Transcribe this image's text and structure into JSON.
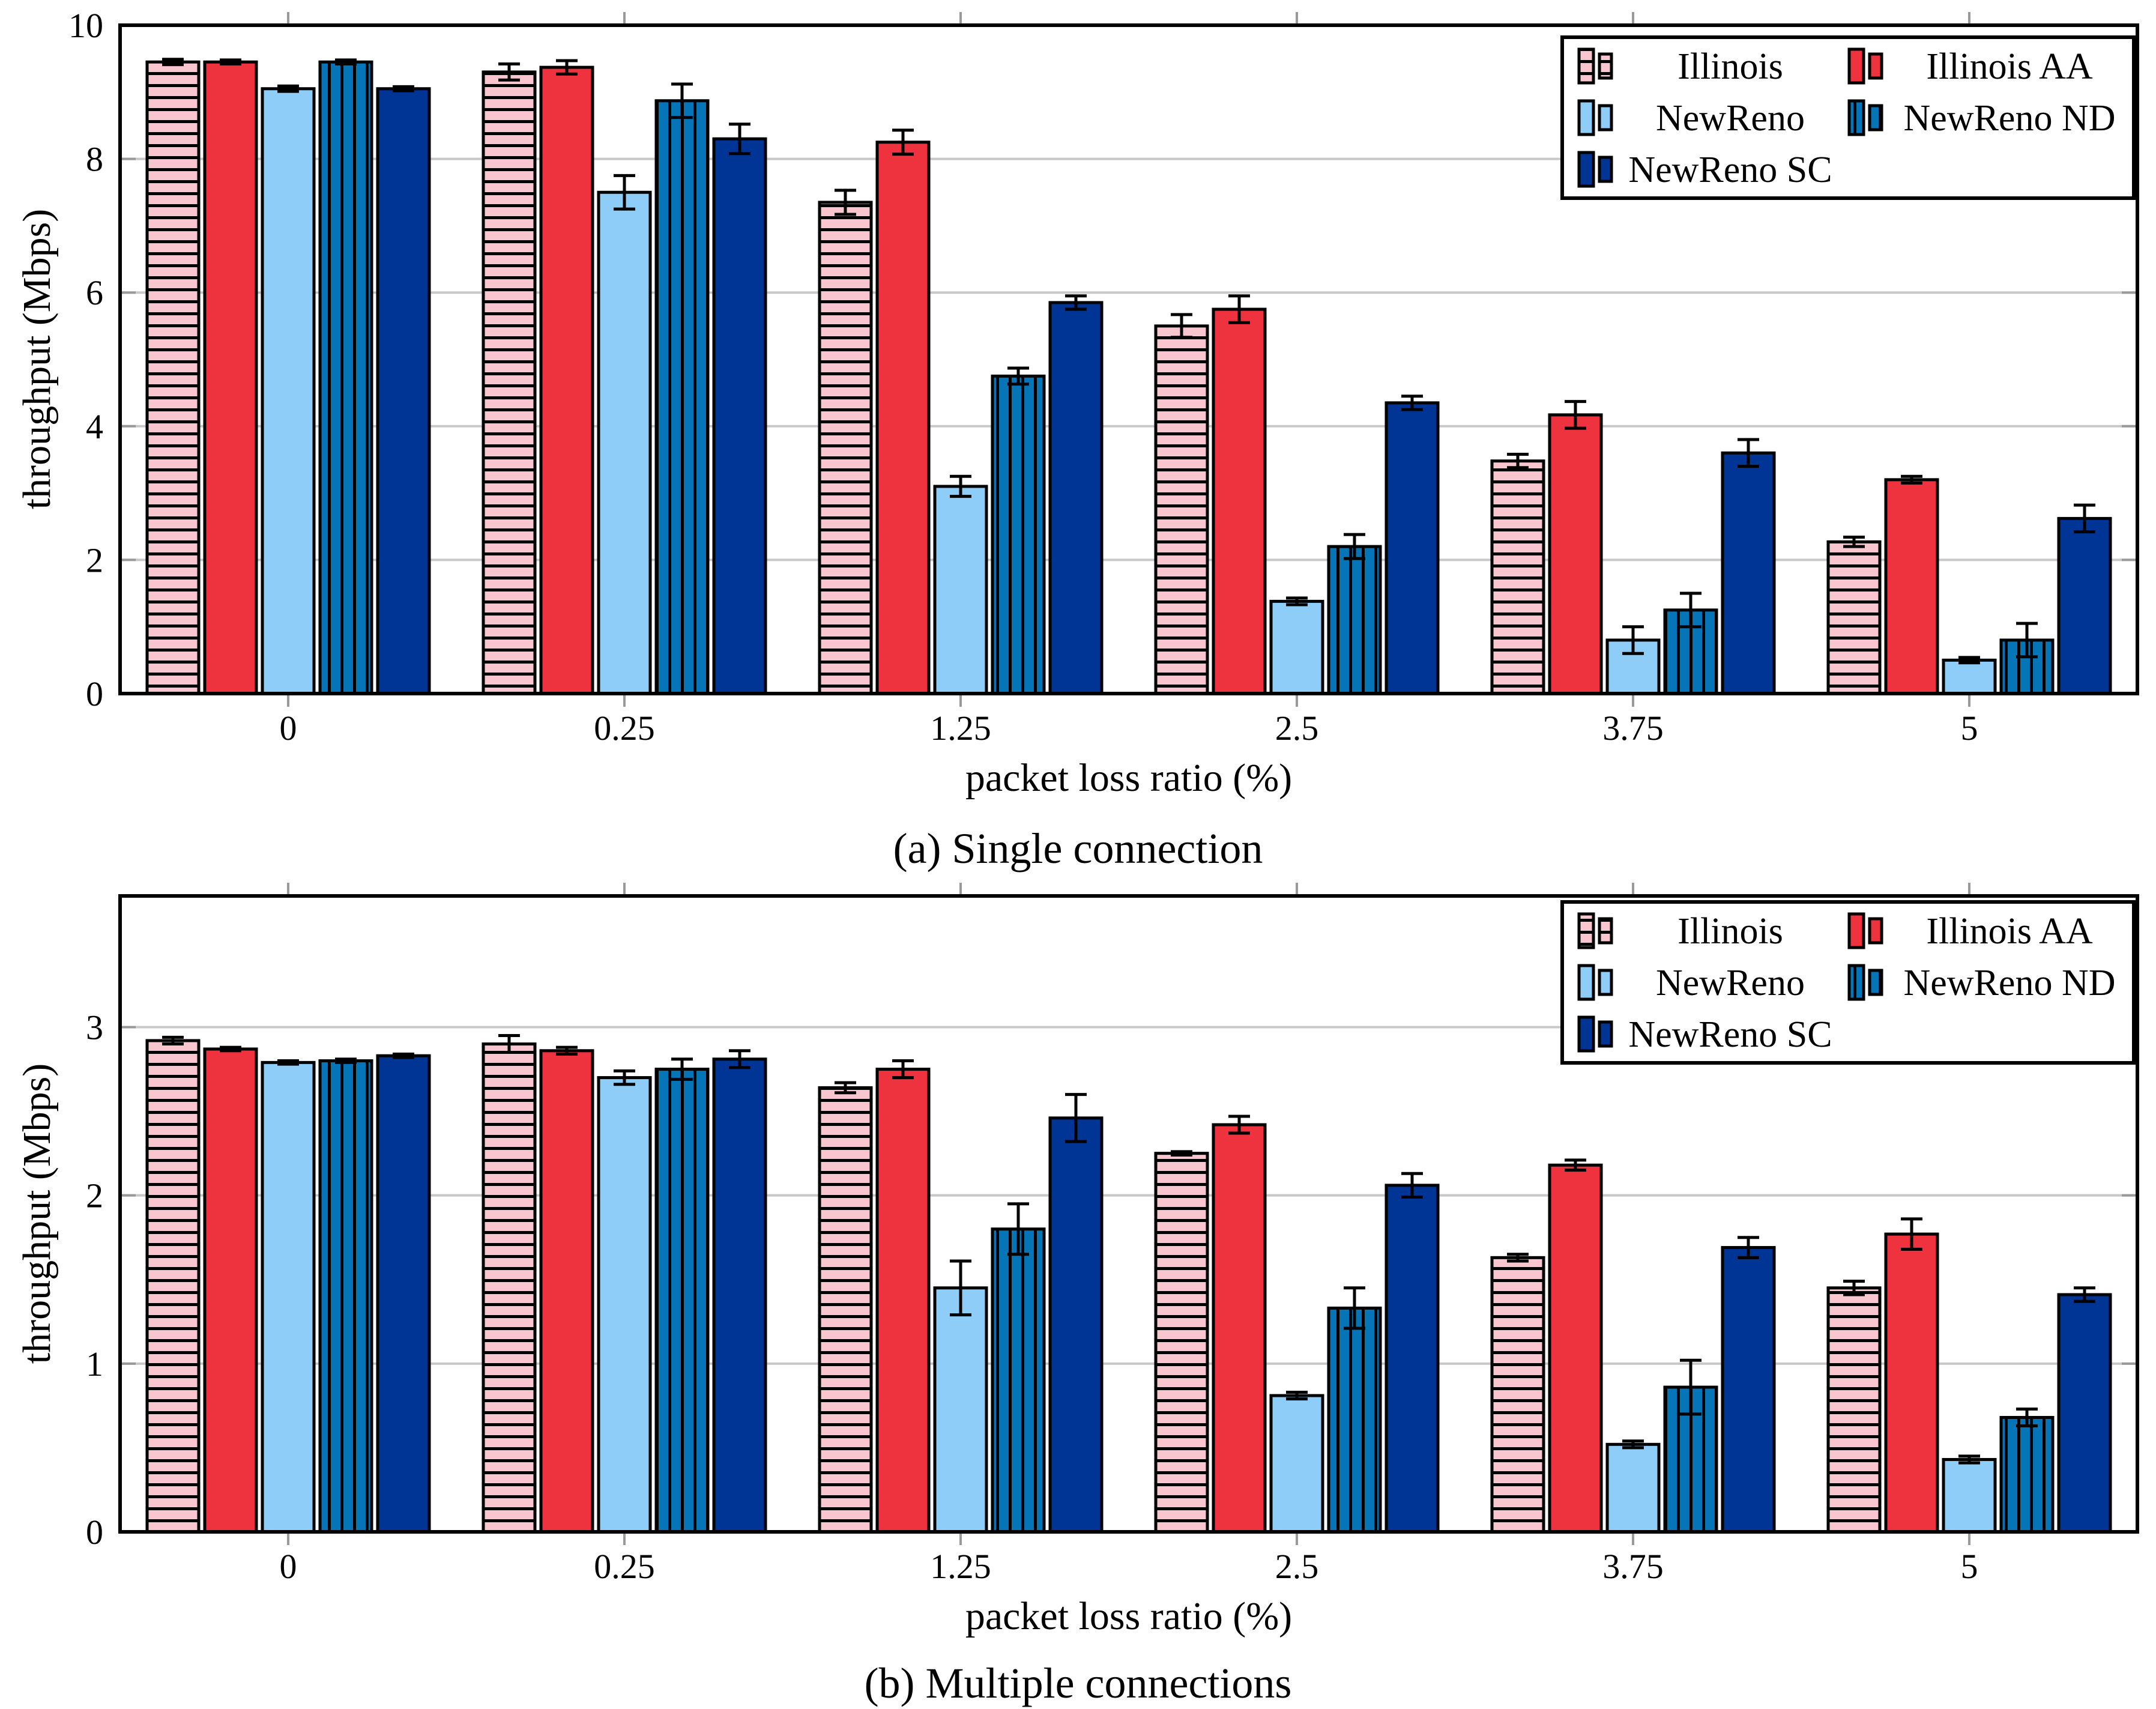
{
  "figure": {
    "background": "#ffffff",
    "axis_color": "#000000",
    "grid_color": "#c8c8c8",
    "tick_color": "#999999",
    "error_bar_color": "#000000"
  },
  "chart_data": [
    {
      "id": "a",
      "type": "bar",
      "title": "(a)  Single connection",
      "xlabel": "packet loss ratio (%)",
      "ylabel": "throughput (Mbps)",
      "categories": [
        "0",
        "0.25",
        "1.25",
        "2.5",
        "3.75",
        "5"
      ],
      "ylim": [
        0,
        10
      ],
      "yticks": [
        0,
        2,
        4,
        6,
        8,
        10
      ],
      "grid": true,
      "legend_position": "top-right",
      "series": [
        {
          "name": "Illinois",
          "color": "#f9c6d0",
          "hatch": "horizontal",
          "values": [
            9.45,
            9.3,
            7.35,
            5.5,
            3.48,
            2.27
          ],
          "errors": [
            0.04,
            0.12,
            0.18,
            0.17,
            0.1,
            0.07
          ]
        },
        {
          "name": "Illinois AA",
          "color": "#ee323e",
          "hatch": "none",
          "values": [
            9.45,
            9.37,
            8.25,
            5.75,
            4.17,
            3.2
          ],
          "errors": [
            0.03,
            0.1,
            0.18,
            0.2,
            0.2,
            0.05
          ]
        },
        {
          "name": "NewReno",
          "color": "#8ecdf7",
          "hatch": "none",
          "values": [
            9.05,
            7.5,
            3.1,
            1.38,
            0.8,
            0.5
          ],
          "errors": [
            0.04,
            0.25,
            0.15,
            0.05,
            0.2,
            0.04
          ]
        },
        {
          "name": "NewReno ND",
          "color": "#0575b8",
          "hatch": "vertical",
          "values": [
            9.45,
            8.87,
            4.75,
            2.2,
            1.25,
            0.8
          ],
          "errors": [
            0.03,
            0.25,
            0.12,
            0.18,
            0.25,
            0.25
          ]
        },
        {
          "name": "NewReno SC",
          "color": "#003595",
          "hatch": "none",
          "values": [
            9.05,
            8.3,
            5.85,
            4.35,
            3.6,
            2.62
          ],
          "errors": [
            0.03,
            0.22,
            0.1,
            0.1,
            0.2,
            0.2
          ]
        }
      ]
    },
    {
      "id": "b",
      "type": "bar",
      "title": "(b)  Multiple connections",
      "xlabel": "packet loss ratio (%)",
      "ylabel": "throughput (Mbps)",
      "categories": [
        "0",
        "0.25",
        "1.25",
        "2.5",
        "3.75",
        "5"
      ],
      "ylim": [
        0,
        3.78
      ],
      "yticks": [
        0,
        1,
        2,
        3
      ],
      "grid": true,
      "legend_position": "top-right",
      "series": [
        {
          "name": "Illinois",
          "color": "#f9c6d0",
          "hatch": "horizontal",
          "values": [
            2.92,
            2.9,
            2.64,
            2.25,
            1.63,
            1.45
          ],
          "errors": [
            0.02,
            0.05,
            0.03,
            0.01,
            0.02,
            0.04
          ]
        },
        {
          "name": "Illinois AA",
          "color": "#ee323e",
          "hatch": "none",
          "values": [
            2.87,
            2.86,
            2.75,
            2.42,
            2.18,
            1.77
          ],
          "errors": [
            0.01,
            0.02,
            0.05,
            0.05,
            0.03,
            0.09
          ]
        },
        {
          "name": "NewReno",
          "color": "#8ecdf7",
          "hatch": "none",
          "values": [
            2.79,
            2.7,
            1.45,
            0.81,
            0.52,
            0.43
          ],
          "errors": [
            0.01,
            0.04,
            0.16,
            0.02,
            0.02,
            0.02
          ]
        },
        {
          "name": "NewReno ND",
          "color": "#0575b8",
          "hatch": "vertical",
          "values": [
            2.8,
            2.75,
            1.8,
            1.33,
            0.86,
            0.68
          ],
          "errors": [
            0.01,
            0.06,
            0.15,
            0.12,
            0.16,
            0.05
          ]
        },
        {
          "name": "NewReno SC",
          "color": "#003595",
          "hatch": "none",
          "values": [
            2.83,
            2.81,
            2.46,
            2.06,
            1.69,
            1.41
          ],
          "errors": [
            0.01,
            0.05,
            0.14,
            0.07,
            0.06,
            0.04
          ]
        }
      ]
    }
  ]
}
